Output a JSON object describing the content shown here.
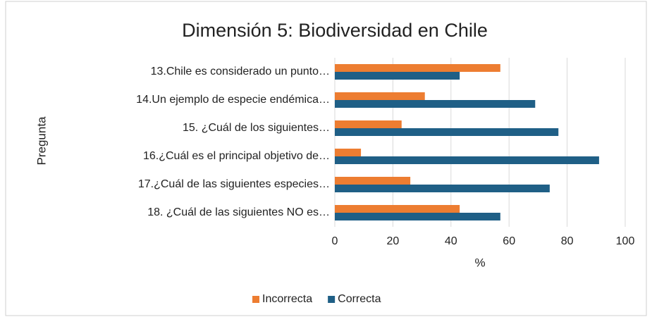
{
  "chart_data": {
    "type": "hbar",
    "title": "Dimensión 5: Biodiversidad en Chile",
    "xlabel": "%",
    "ylabel": "Pregunta",
    "categories": [
      "13.Chile es considerado un punto…",
      "14.Un ejemplo de especie endémica…",
      "15. ¿Cuál de los siguientes…",
      "16.¿Cuál es el principal objetivo de…",
      "17.¿Cuál de las siguientes especies…",
      "18. ¿Cuál de las siguientes NO es…"
    ],
    "series": [
      {
        "name": "Incorrecta",
        "color": "#ed7d31",
        "values": [
          57,
          31,
          23,
          9,
          26,
          43
        ]
      },
      {
        "name": "Correcta",
        "color": "#1f5f86",
        "values": [
          43,
          69,
          77,
          91,
          74,
          57
        ]
      }
    ],
    "xlim": [
      0,
      100
    ],
    "xticks": [
      0,
      20,
      40,
      60,
      80,
      100
    ],
    "grid": true,
    "legend": "bottom"
  }
}
